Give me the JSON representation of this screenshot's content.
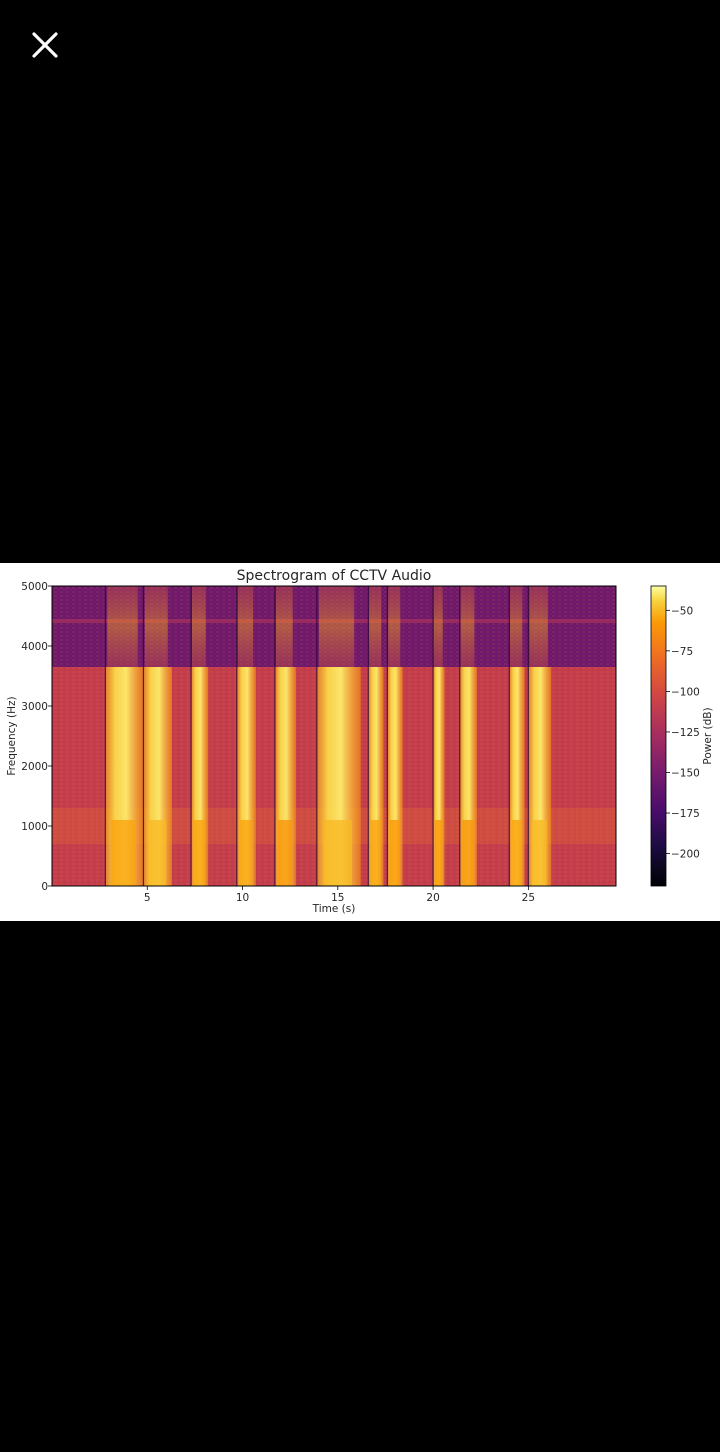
{
  "viewer": {
    "close_icon": "close-icon"
  },
  "chart_data": {
    "type": "heatmap",
    "title": "Spectrogram of CCTV Audio",
    "xlabel": "Time (s)",
    "ylabel": "Frequency (Hz)",
    "xlim": [
      0,
      29.6
    ],
    "ylim": [
      0,
      5000
    ],
    "x_ticks": [
      5,
      10,
      15,
      20,
      25
    ],
    "x_tick_labels": [
      "5",
      "10",
      "15",
      "20",
      "25"
    ],
    "y_ticks": [
      0,
      1000,
      2000,
      3000,
      4000,
      5000
    ],
    "y_tick_labels": [
      "0",
      "1000",
      "2000",
      "3000",
      "4000",
      "5000"
    ],
    "colormap": "inferno",
    "colorbar": {
      "label": "Power (dB)",
      "range": [
        -220,
        -35
      ],
      "ticks": [
        -50,
        -75,
        -100,
        -125,
        -150,
        -175,
        -200
      ],
      "tick_labels": [
        "−50",
        "−75",
        "−100",
        "−125",
        "−150",
        "−175",
        "−200"
      ]
    },
    "bands": [
      {
        "from": 0,
        "to": 3650,
        "level_db": -110
      },
      {
        "from": 3650,
        "to": 5000,
        "level_db": -155
      }
    ],
    "bursts": [
      {
        "start": 2.8,
        "end": 4.8,
        "peak_db": -55
      },
      {
        "start": 4.8,
        "end": 6.3,
        "peak_db": -50
      },
      {
        "start": 7.3,
        "end": 8.2,
        "peak_db": -55
      },
      {
        "start": 9.7,
        "end": 10.7,
        "peak_db": -55
      },
      {
        "start": 11.7,
        "end": 12.8,
        "peak_db": -60
      },
      {
        "start": 13.9,
        "end": 16.2,
        "peak_db": -50
      },
      {
        "start": 16.6,
        "end": 17.4,
        "peak_db": -55
      },
      {
        "start": 17.6,
        "end": 18.4,
        "peak_db": -58
      },
      {
        "start": 20.0,
        "end": 20.6,
        "peak_db": -58
      },
      {
        "start": 21.4,
        "end": 22.3,
        "peak_db": -60
      },
      {
        "start": 24.0,
        "end": 24.8,
        "peak_db": -55
      },
      {
        "start": 25.0,
        "end": 26.2,
        "peak_db": -50
      }
    ]
  }
}
